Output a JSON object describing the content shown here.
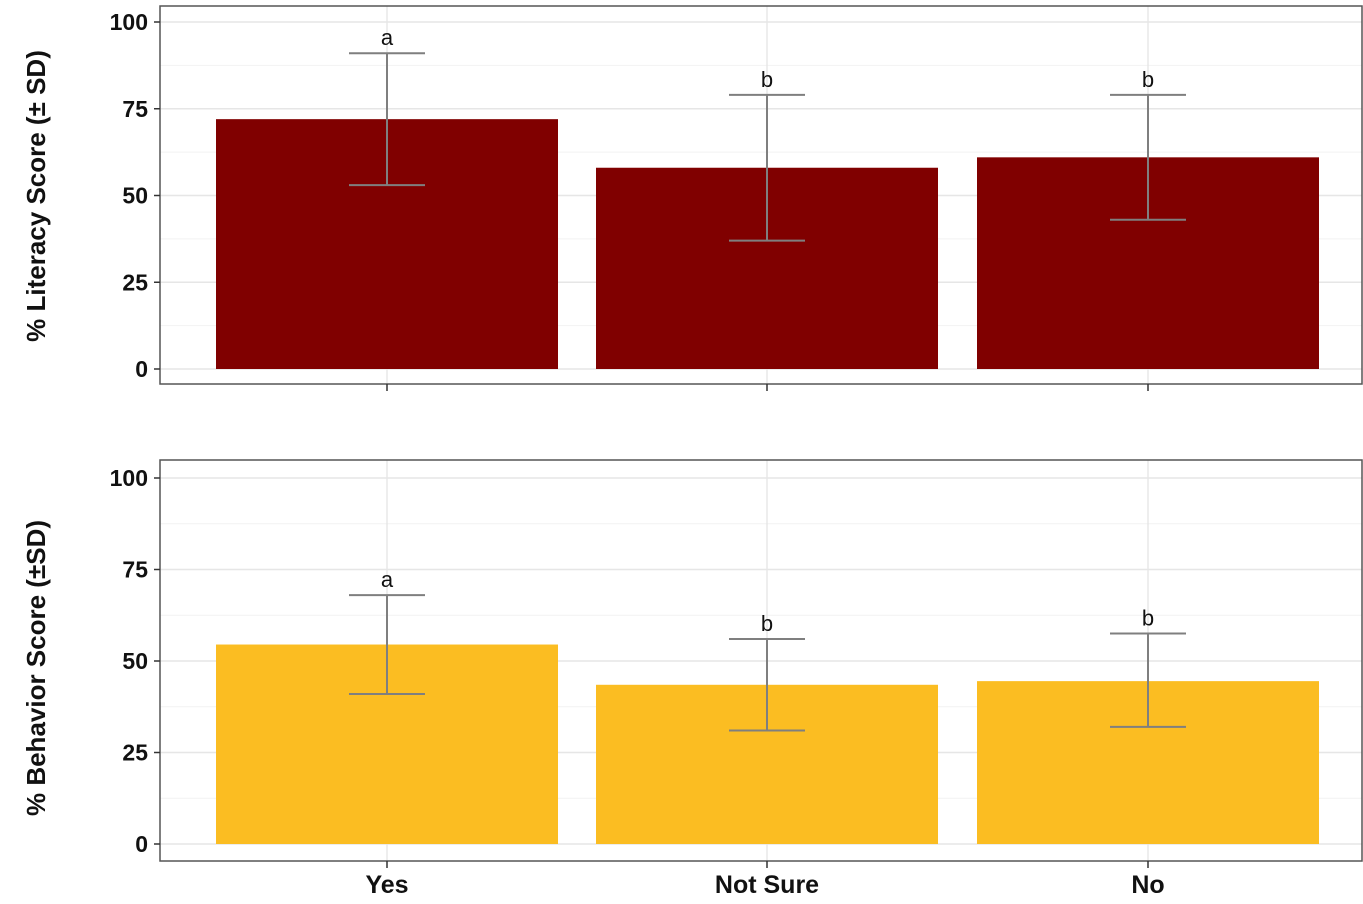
{
  "chart_data": [
    {
      "type": "bar",
      "panel": "top",
      "ylabel": "% Literacy Score (± SD)",
      "categories": [
        "Yes",
        "Not Sure",
        "No"
      ],
      "values": [
        72,
        58,
        61
      ],
      "sd_lower": [
        53,
        37,
        43
      ],
      "sd_upper": [
        91,
        79,
        79
      ],
      "significance_letters": [
        "a",
        "b",
        "b"
      ],
      "ylim": [
        0,
        100
      ],
      "yticks": [
        "0",
        "25",
        "50",
        "75",
        "100"
      ],
      "bar_color": "#800000",
      "grid": true,
      "show_x_tick_labels": false
    },
    {
      "type": "bar",
      "panel": "bottom",
      "ylabel": "% Behavior Score (±SD)",
      "categories": [
        "Yes",
        "Not Sure",
        "No"
      ],
      "values": [
        54.5,
        43.5,
        44.5
      ],
      "sd_lower": [
        41,
        31,
        32
      ],
      "sd_upper": [
        68,
        56,
        57.5
      ],
      "significance_letters": [
        "a",
        "b",
        "b"
      ],
      "ylim": [
        0,
        100
      ],
      "yticks": [
        "0",
        "25",
        "50",
        "75",
        "100"
      ],
      "bar_color": "#FBBD22",
      "grid": true,
      "show_x_tick_labels": true
    }
  ],
  "style": {
    "errorbar_color": "#7f7f7f",
    "grid_major_color": "#e6e6e6",
    "grid_minor_color": "#f2f2f2",
    "panel_border_color": "#555555",
    "text_color": "#111111"
  }
}
